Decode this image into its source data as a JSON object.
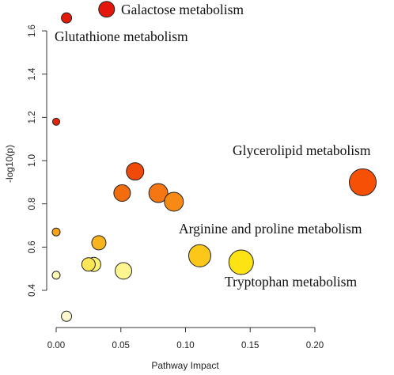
{
  "chart_data": {
    "type": "scatter",
    "title": "",
    "xlabel": "Pathway Impact",
    "ylabel": "-log10(p)",
    "xlim": [
      0,
      0.24
    ],
    "ylim": [
      0.24,
      1.72
    ],
    "x_ticks": [
      0.0,
      0.05,
      0.1,
      0.15,
      0.2
    ],
    "x_tick_labels": [
      "0.00",
      "0.05",
      "0.10",
      "0.15",
      "0.20"
    ],
    "y_ticks": [
      0.4,
      0.6,
      0.8,
      1.0,
      1.2,
      1.4,
      1.6
    ],
    "y_tick_labels": [
      "0.4",
      "0.6",
      "0.8",
      "1.0",
      "1.2",
      "1.4",
      "1.6"
    ],
    "grid": false,
    "color_scale": "p-value (red = smaller p, pale yellow = larger p)",
    "size_encoding": "pathway impact",
    "points": [
      {
        "x": 0.039,
        "y": 1.7,
        "r": 10,
        "color": "#e3170a",
        "label": "Galactose metabolism"
      },
      {
        "x": 0.008,
        "y": 1.66,
        "r": 6.5,
        "color": "#e11a0c",
        "label": "Glutathione metabolism"
      },
      {
        "x": 0.0,
        "y": 1.18,
        "r": 4.5,
        "color": "#e4250c",
        "label": ""
      },
      {
        "x": 0.237,
        "y": 0.9,
        "r": 17,
        "color": "#f55006",
        "label": "Glycerolipid metabolism"
      },
      {
        "x": 0.061,
        "y": 0.95,
        "r": 11,
        "color": "#f04a0b",
        "label": ""
      },
      {
        "x": 0.051,
        "y": 0.85,
        "r": 10.5,
        "color": "#f36d0e",
        "label": ""
      },
      {
        "x": 0.079,
        "y": 0.85,
        "r": 12,
        "color": "#f57612",
        "label": ""
      },
      {
        "x": 0.091,
        "y": 0.81,
        "r": 12,
        "color": "#f68a15",
        "label": ""
      },
      {
        "x": 0.0,
        "y": 0.67,
        "r": 5,
        "color": "#f5a416",
        "label": ""
      },
      {
        "x": 0.033,
        "y": 0.62,
        "r": 9,
        "color": "#f7b41f",
        "label": ""
      },
      {
        "x": 0.111,
        "y": 0.56,
        "r": 14,
        "color": "#fbc719",
        "label": "Arginine and proline metabolism"
      },
      {
        "x": 0.143,
        "y": 0.53,
        "r": 15.5,
        "color": "#fde214",
        "label": "Tryptophan metabolism"
      },
      {
        "x": 0.025,
        "y": 0.52,
        "r": 8.5,
        "color": "#fbe657",
        "label": ""
      },
      {
        "x": 0.029,
        "y": 0.52,
        "r": 9,
        "color": "#fdf274",
        "label": ""
      },
      {
        "x": 0.052,
        "y": 0.49,
        "r": 10.5,
        "color": "#fdf690",
        "label": ""
      },
      {
        "x": 0.0,
        "y": 0.47,
        "r": 5,
        "color": "#fbf7b4",
        "label": ""
      },
      {
        "x": 0.008,
        "y": 0.28,
        "r": 6.5,
        "color": "#fbf7cf",
        "label": ""
      }
    ]
  }
}
